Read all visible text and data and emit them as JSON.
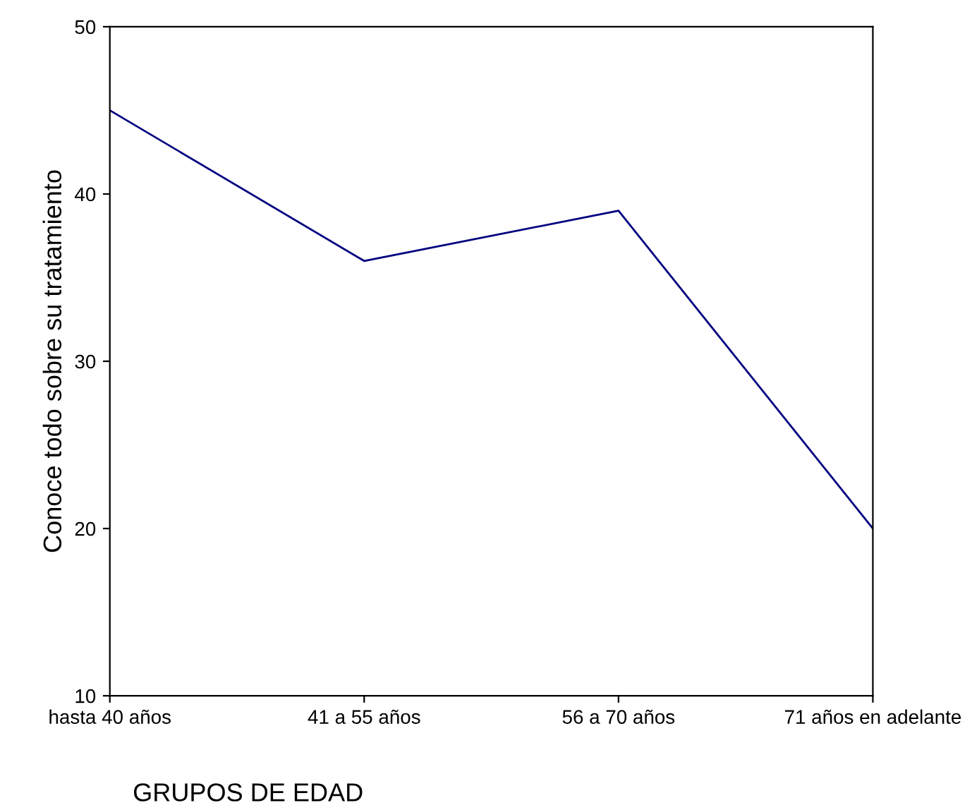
{
  "chart_data": {
    "type": "line",
    "xlabel": "GRUPOS DE EDAD",
    "ylabel": "Conoce todo sobre su tratamiento",
    "categories": [
      "hasta 40 años",
      "41 a 55 años",
      "56 a 70 años",
      "71 años en adelante"
    ],
    "series": [
      {
        "color": "#000080",
        "values": [
          45,
          36,
          39,
          20
        ]
      }
    ],
    "ylim": [
      10,
      50
    ],
    "yticks": [
      10,
      20,
      30,
      40,
      50
    ],
    "grid": false,
    "legend": false,
    "marker": "none",
    "line_style": "solid"
  }
}
